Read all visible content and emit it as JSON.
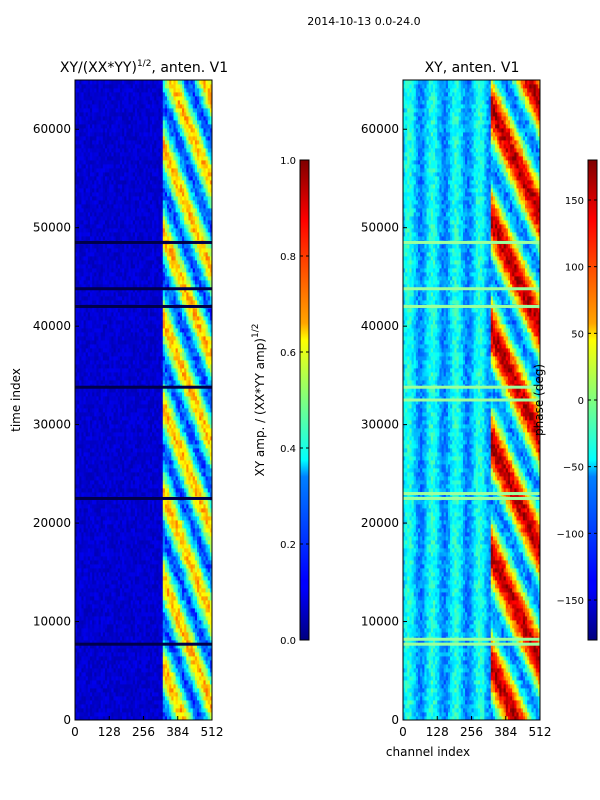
{
  "figure": {
    "title": "2014-10-13 0.0-24.0"
  },
  "chart_data": [
    {
      "type": "heatmap",
      "title": "XY/(XX*YY)",
      "title_exponent": "1/2",
      "title_suffix": ", anten. V1",
      "xlabel": "",
      "ylabel": "time index",
      "xlim": [
        0,
        512
      ],
      "ylim": [
        0,
        65000
      ],
      "xticks": [
        0,
        128,
        256,
        384,
        512
      ],
      "yticks": [
        0,
        10000,
        20000,
        30000,
        40000,
        50000,
        60000
      ],
      "colormap": "jet",
      "colorbar": {
        "label": "XY amp. / (XX*YY amp)",
        "label_exponent": "1/2",
        "range": [
          0.0,
          1.0
        ],
        "ticks": [
          0.0,
          0.2,
          0.4,
          0.6,
          0.8,
          1.0
        ],
        "tick_labels": [
          "0.0",
          "0.2",
          "0.4",
          "0.6",
          "0.8",
          "1.0"
        ]
      },
      "description_values": {
        "baseline_level": 0.05,
        "high_activity_channel_start": 325,
        "high_activity_level_range": [
          0.2,
          0.7
        ],
        "dark_band_rows": [
          7700,
          22500,
          33800,
          42000,
          43800,
          48500
        ]
      }
    },
    {
      "type": "heatmap",
      "title": "XY, anten. V1",
      "xlabel": "channel index",
      "ylabel": "",
      "xlim": [
        0,
        512
      ],
      "ylim": [
        0,
        65000
      ],
      "xticks": [
        0,
        128,
        256,
        384,
        512
      ],
      "yticks": [
        0,
        10000,
        20000,
        30000,
        40000,
        50000,
        60000
      ],
      "colormap": "jet",
      "colorbar": {
        "label": "phase (deg)",
        "range": [
          -180,
          180
        ],
        "ticks": [
          -150,
          -100,
          -50,
          0,
          50,
          100,
          150
        ],
        "tick_labels": [
          "−150",
          "−100",
          "−50",
          "0",
          "50",
          "100",
          "150"
        ]
      },
      "description_values": {
        "baseline_phase_deg": -60,
        "active_channel_start": 325,
        "bright_band_rows": [
          7700,
          8200,
          22500,
          23000,
          32500,
          33800,
          42000,
          43800,
          48500
        ]
      }
    }
  ]
}
